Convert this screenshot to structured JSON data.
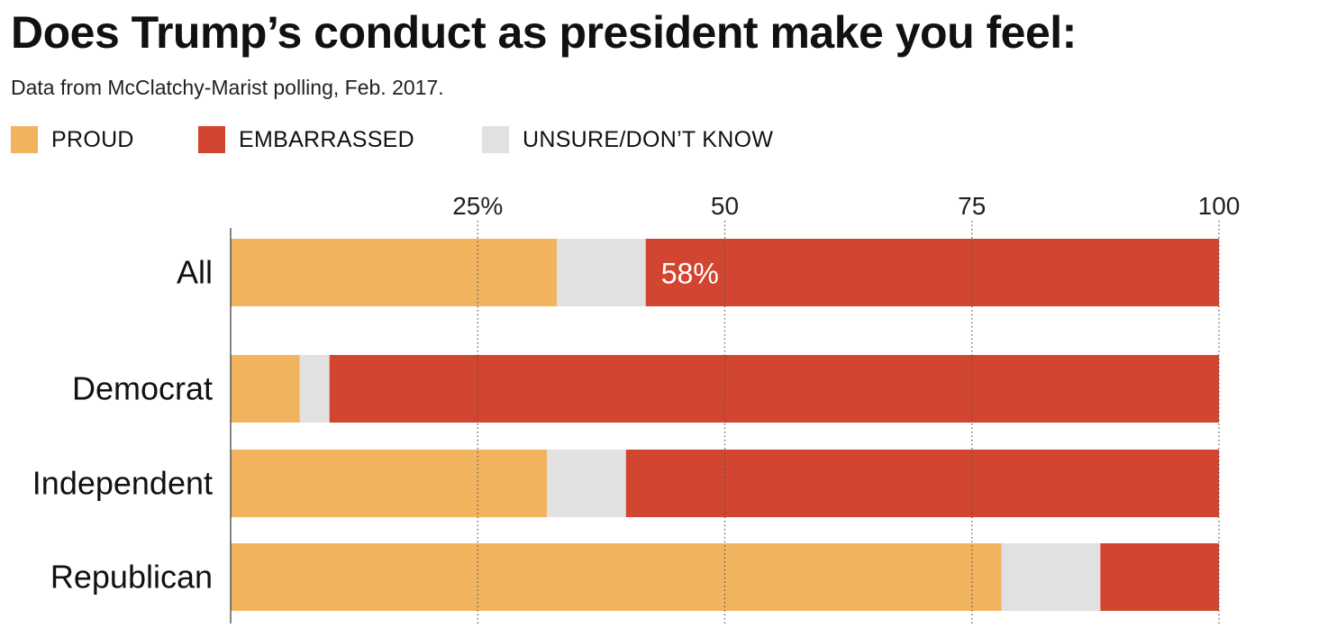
{
  "title": "Does Trump’s conduct as president make you feel:",
  "subtitle": "Data from McClatchy-Marist polling, Feb. 2017.",
  "legend": [
    {
      "label": "PROUD",
      "color": "#f2b35e"
    },
    {
      "label": "EMBARRASSED",
      "color": "#d24530"
    },
    {
      "label": "UNSURE/DON’T KNOW",
      "color": "#e1e1e1"
    }
  ],
  "chart_data": {
    "type": "bar",
    "orientation": "horizontal",
    "stacked": true,
    "categories": [
      "All",
      "Democrat",
      "Independent",
      "Republican"
    ],
    "series": [
      {
        "name": "PROUD",
        "color": "#f2b35e",
        "values": [
          33,
          7,
          32,
          78
        ]
      },
      {
        "name": "UNSURE/DON’T KNOW",
        "color": "#e1e1e1",
        "values": [
          9,
          3,
          8,
          10
        ]
      },
      {
        "name": "EMBARRASSED",
        "color": "#d24530",
        "values": [
          58,
          90,
          60,
          12
        ]
      }
    ],
    "xlim": [
      0,
      100
    ],
    "x_ticks": [
      {
        "value": 25,
        "label": "25%"
      },
      {
        "value": 50,
        "label": "50"
      },
      {
        "value": 75,
        "label": "75"
      },
      {
        "value": 100,
        "label": "100"
      }
    ],
    "data_labels": [
      {
        "category": "All",
        "series": "EMBARRASSED",
        "label": "58%"
      }
    ],
    "grid": "dotted vertical",
    "legend_position": "top-left"
  }
}
